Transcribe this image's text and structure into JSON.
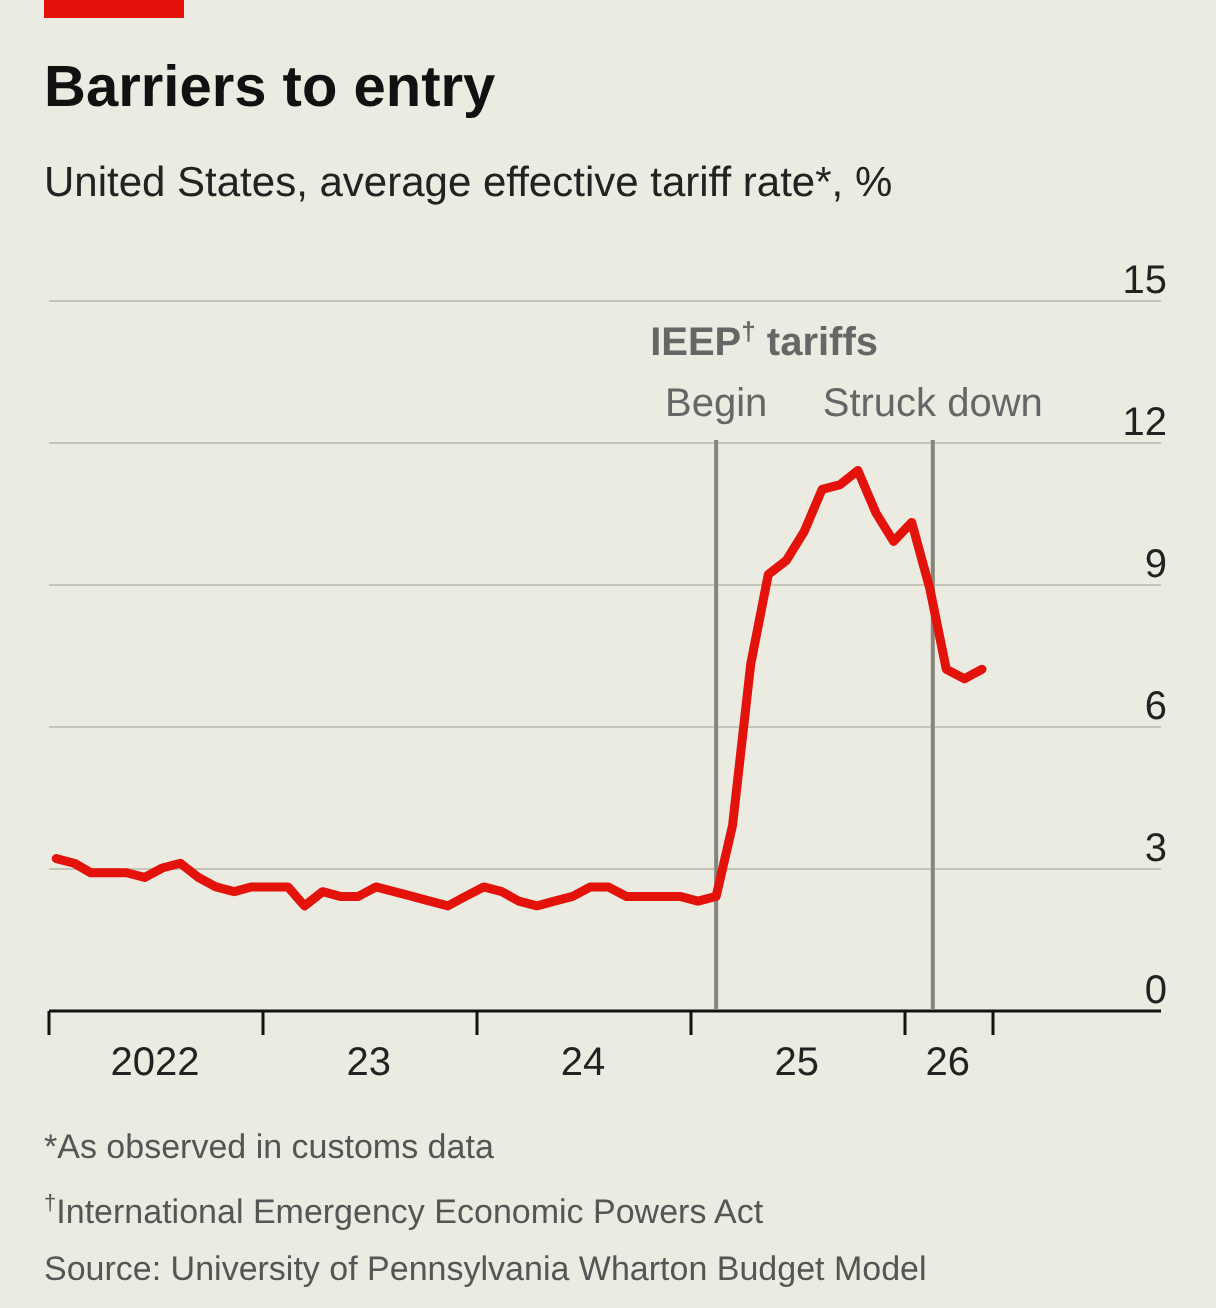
{
  "chart_data": {
    "type": "line",
    "title": "Barriers to entry",
    "subtitle": "United States, average effective tariff rate*, %",
    "x": [
      "2022-01-15",
      "2022-02-15",
      "2022-03-15",
      "2022-04-15",
      "2022-05-15",
      "2022-06-15",
      "2022-07-15",
      "2022-08-15",
      "2022-09-15",
      "2022-10-15",
      "2022-11-15",
      "2022-12-15",
      "2023-01-15",
      "2023-02-15",
      "2023-03-15",
      "2023-04-15",
      "2023-05-15",
      "2023-06-15",
      "2023-07-15",
      "2023-08-15",
      "2023-09-15",
      "2023-10-15",
      "2023-11-15",
      "2023-12-15",
      "2024-01-15",
      "2024-02-15",
      "2024-03-15",
      "2024-04-15",
      "2024-05-15",
      "2024-06-15",
      "2024-07-15",
      "2024-08-15",
      "2024-09-15",
      "2024-10-15",
      "2024-11-15",
      "2024-12-15",
      "2025-01-15",
      "2025-02-15",
      "2025-03-15",
      "2025-04-15",
      "2025-05-15",
      "2025-06-15",
      "2025-07-15",
      "2025-08-15",
      "2025-09-15",
      "2025-10-15",
      "2025-11-15",
      "2025-12-15",
      "2026-01-15",
      "2026-02-15",
      "2026-03-15",
      "2026-04-15",
      "2026-05-15"
    ],
    "series": [
      {
        "color": "#e3120b",
        "values": [
          3.2,
          3.1,
          2.9,
          2.9,
          2.9,
          2.8,
          3.0,
          3.1,
          2.8,
          2.6,
          2.5,
          2.6,
          2.6,
          2.6,
          2.2,
          2.5,
          2.4,
          2.4,
          2.6,
          2.5,
          2.4,
          2.3,
          2.2,
          2.4,
          2.6,
          2.5,
          2.3,
          2.2,
          2.3,
          2.4,
          2.6,
          2.6,
          2.4,
          2.4,
          2.4,
          2.4,
          2.3,
          2.4,
          3.9,
          7.3,
          9.2,
          9.5,
          10.1,
          11.0,
          11.1,
          11.4,
          10.5,
          9.9,
          10.3,
          8.9,
          7.2,
          7.0,
          7.2
        ]
      }
    ],
    "xlim": [
      "2022-01-01",
      "2027-03-15"
    ],
    "xticks": [
      {
        "value": "2022-01-01",
        "label": null
      },
      {
        "value": "2022-07-01",
        "label": "2022"
      },
      {
        "value": "2023-01-01",
        "label": null
      },
      {
        "value": "2023-07-01",
        "label": "23"
      },
      {
        "value": "2024-01-01",
        "label": null
      },
      {
        "value": "2024-07-01",
        "label": "24"
      },
      {
        "value": "2025-01-01",
        "label": null
      },
      {
        "value": "2025-07-01",
        "label": "25"
      },
      {
        "value": "2026-01-01",
        "label": null
      },
      {
        "value": "2026-03-16",
        "label": "26"
      },
      {
        "value": "2026-06-01",
        "label": null
      }
    ],
    "ylim": [
      0,
      15
    ],
    "yticks": [
      0,
      3,
      6,
      9,
      12,
      15
    ],
    "grid": "y",
    "ref_lines": [
      {
        "axis": "x",
        "value": "2025-02-15",
        "label": "Begin",
        "color": "#858579"
      },
      {
        "axis": "x",
        "value": "2026-02-20",
        "label": "Struck down",
        "color": "#858579"
      }
    ],
    "annotations": [
      "IEEP$^{†}$ tariffs",
      "*As observed in customs data",
      "$^{†}$International Emergency Economic Powers Act",
      "Source: University of Pennsylvania Wharton Budget Model"
    ]
  }
}
